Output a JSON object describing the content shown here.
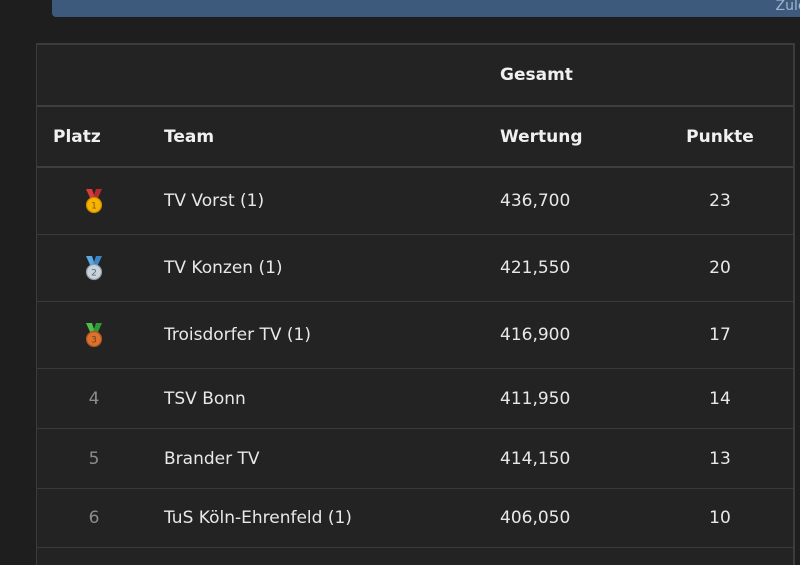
{
  "banner": {
    "text": "Zulet"
  },
  "table": {
    "group_header": "Gesamt",
    "columns": {
      "platz": "Platz",
      "team": "Team",
      "wertung": "Wertung",
      "punkte": "Punkte"
    },
    "rows": [
      {
        "platz": "1",
        "medal": "gold-medal-icon",
        "team": "TV Vorst (1)",
        "wertung": "436,700",
        "punkte": "23"
      },
      {
        "platz": "2",
        "medal": "silver-medal-icon",
        "team": "TV Konzen (1)",
        "wertung": "421,550",
        "punkte": "20"
      },
      {
        "platz": "3",
        "medal": "bronze-medal-icon",
        "team": "Troisdorfer TV (1)",
        "wertung": "416,900",
        "punkte": "17"
      },
      {
        "platz": "4",
        "team": "TSV Bonn",
        "wertung": "411,950",
        "punkte": "14"
      },
      {
        "platz": "5",
        "team": "Brander TV",
        "wertung": "414,150",
        "punkte": "13"
      },
      {
        "platz": "6",
        "team": "TuS Köln-Ehrenfeld (1)",
        "wertung": "406,050",
        "punkte": "10"
      }
    ]
  },
  "colors": {
    "background": "#1e1e1e",
    "table_bg": "#232323",
    "banner": "#3d5a7d",
    "gold": "#f5b400",
    "silver": "#b9c7d4",
    "bronze": "#d9732f"
  }
}
